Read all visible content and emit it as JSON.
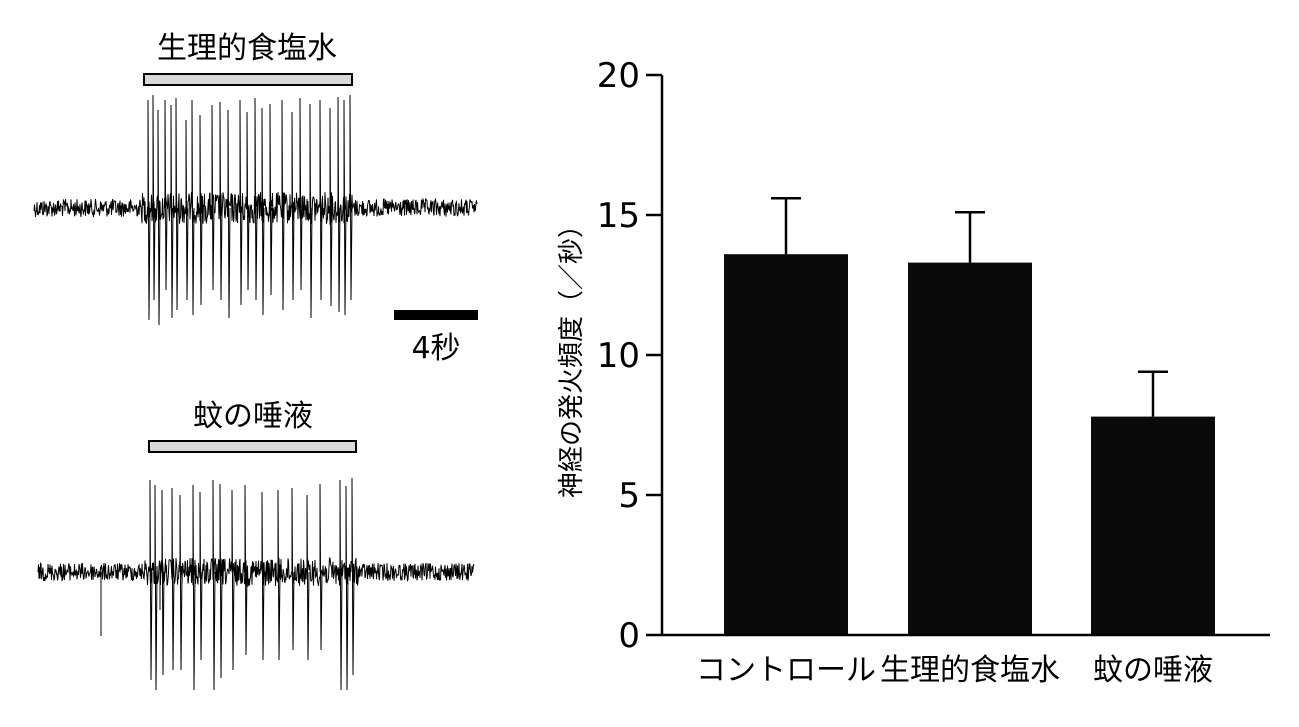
{
  "traces": [
    {
      "label": "生理的食塩水"
    },
    {
      "label": "蚊の唾液"
    }
  ],
  "scale_bar": {
    "label": "4秒",
    "seconds": 4
  },
  "chart_data": {
    "type": "bar",
    "categories": [
      "コントロール",
      "生理的食塩水",
      "蚊の唾液"
    ],
    "values": [
      13.6,
      13.3,
      7.8
    ],
    "errors": [
      2.0,
      1.8,
      1.6
    ],
    "ylabel": "神経の発火頻度（／秒）",
    "ylim": [
      0,
      20
    ],
    "yticks": [
      0,
      5,
      10,
      15,
      20
    ],
    "bar_color": "#0a0a0a",
    "grid": false
  }
}
